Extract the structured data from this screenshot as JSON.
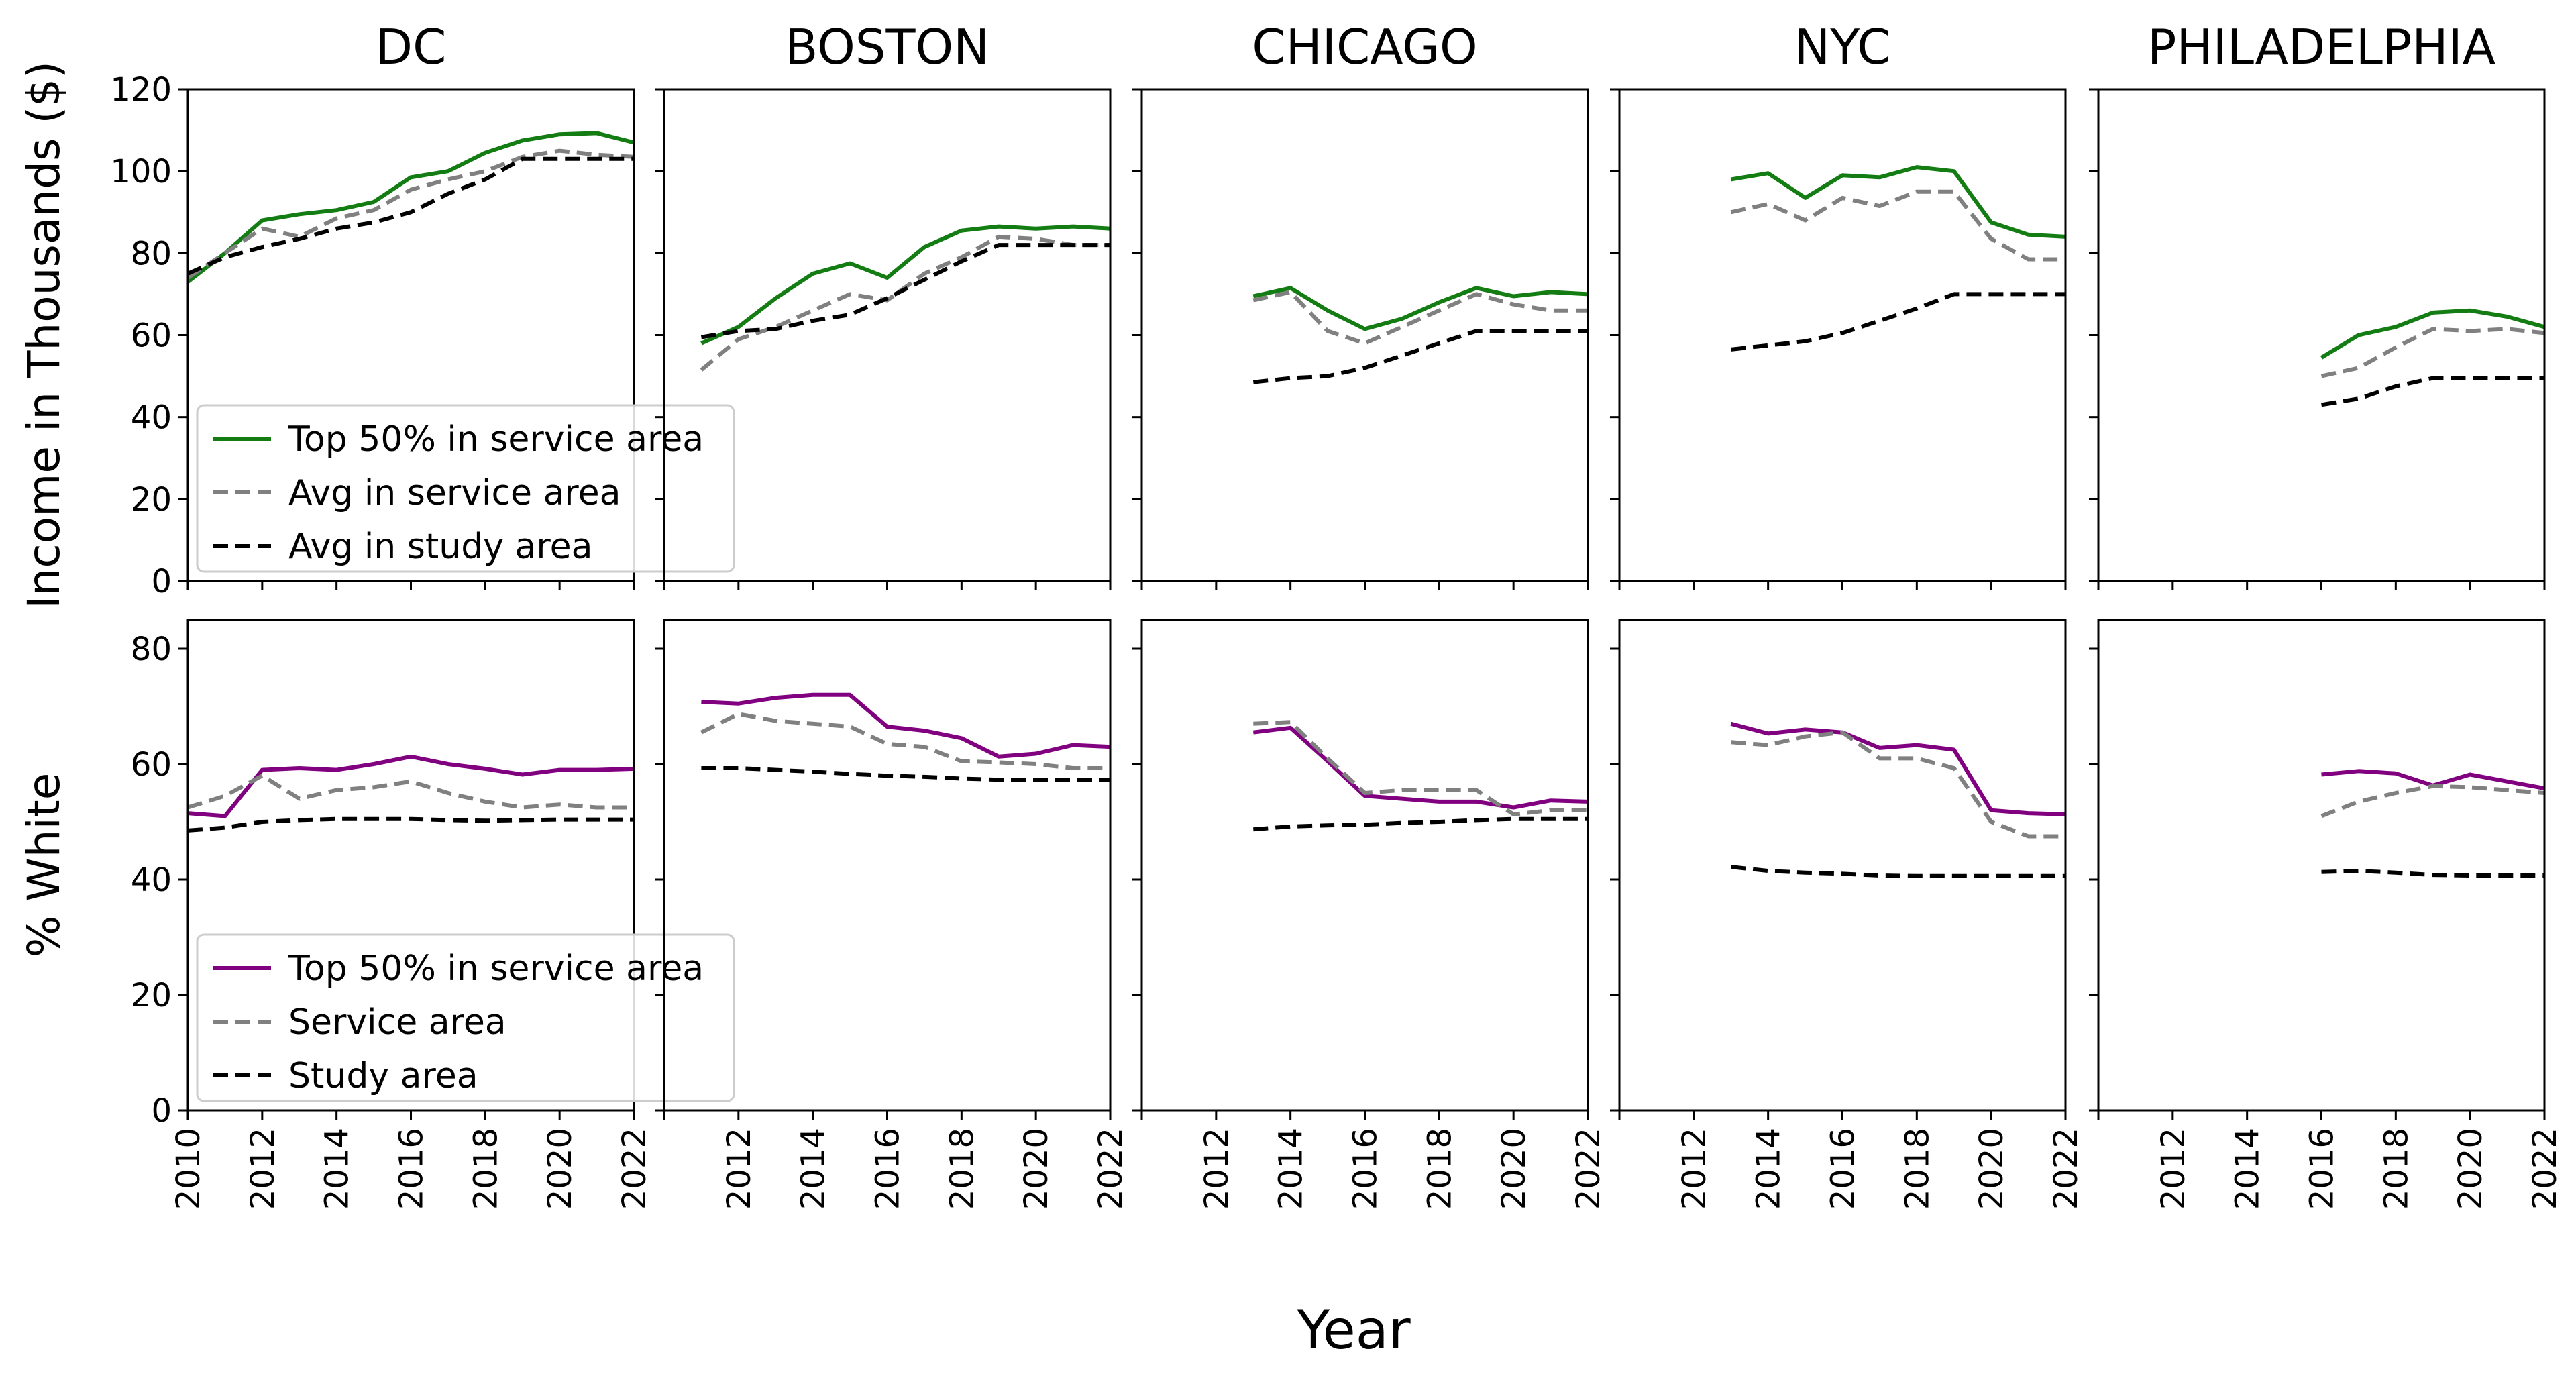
{
  "figure": {
    "xlabel": "Year",
    "colors": {
      "income_top": "#137d13",
      "white_top": "#800080",
      "service": "#808080",
      "study": "#000000"
    }
  },
  "chart_data": [
    {
      "type": "line",
      "row": "income",
      "title": "DC",
      "ylabel": "Income in Thousands ($)",
      "xlim": [
        2010,
        2022
      ],
      "ylim": [
        0,
        120
      ],
      "yticks": [
        0,
        20,
        40,
        60,
        80,
        100,
        120
      ],
      "xticks": [
        2010,
        2012,
        2014,
        2016,
        2018,
        2020,
        2022
      ],
      "legend": "lower-left",
      "series": [
        {
          "name": "Top 50% in service area",
          "style": "solid",
          "color_key": "income_top",
          "x": [
            2010,
            2011,
            2012,
            2013,
            2014,
            2015,
            2016,
            2017,
            2018,
            2019,
            2020,
            2021,
            2022
          ],
          "y": [
            73,
            80,
            88,
            89.5,
            90.5,
            92.5,
            98.5,
            100,
            104.5,
            107.5,
            109,
            109.3,
            107
          ]
        },
        {
          "name": "Avg in service area",
          "style": "dashed",
          "color_key": "service",
          "x": [
            2010,
            2011,
            2012,
            2013,
            2014,
            2015,
            2016,
            2017,
            2018,
            2019,
            2020,
            2021,
            2022
          ],
          "y": [
            74,
            80,
            86,
            84,
            88.5,
            90.5,
            95.5,
            98,
            100,
            103.5,
            105,
            104,
            103.5
          ]
        },
        {
          "name": "Avg in study area",
          "style": "dashed",
          "color_key": "study",
          "x": [
            2010,
            2011,
            2012,
            2013,
            2014,
            2015,
            2016,
            2017,
            2018,
            2019,
            2020,
            2021,
            2022
          ],
          "y": [
            75,
            79,
            81.5,
            83.5,
            86,
            87.5,
            90,
            94.5,
            98,
            103,
            103,
            103,
            103
          ]
        }
      ]
    },
    {
      "type": "line",
      "row": "income",
      "title": "BOSTON",
      "xlim": [
        2010,
        2022
      ],
      "ylim": [
        0,
        120
      ],
      "xticks": [
        2012,
        2014,
        2016,
        2018,
        2020,
        2022
      ],
      "series": [
        {
          "style": "solid",
          "color_key": "income_top",
          "x": [
            2011,
            2012,
            2013,
            2014,
            2015,
            2016,
            2017,
            2018,
            2019,
            2020,
            2021,
            2022
          ],
          "y": [
            58,
            62,
            69,
            75,
            77.5,
            74,
            81.5,
            85.5,
            86.5,
            86,
            86.5,
            86
          ]
        },
        {
          "style": "dashed",
          "color_key": "service",
          "x": [
            2011,
            2012,
            2013,
            2014,
            2015,
            2016,
            2017,
            2018,
            2019,
            2020,
            2021,
            2022
          ],
          "y": [
            51.5,
            59,
            62,
            66,
            70,
            68.5,
            75,
            79,
            84,
            83.5,
            82,
            82
          ]
        },
        {
          "style": "dashed",
          "color_key": "study",
          "x": [
            2011,
            2012,
            2013,
            2014,
            2015,
            2016,
            2017,
            2018,
            2019,
            2020,
            2021,
            2022
          ],
          "y": [
            59.5,
            61,
            61.5,
            63.5,
            65,
            69,
            73.5,
            78,
            82,
            82,
            82,
            82
          ]
        }
      ]
    },
    {
      "type": "line",
      "row": "income",
      "title": "CHICAGO",
      "xlim": [
        2010,
        2022
      ],
      "ylim": [
        0,
        120
      ],
      "xticks": [
        2012,
        2014,
        2016,
        2018,
        2020,
        2022
      ],
      "series": [
        {
          "style": "solid",
          "color_key": "income_top",
          "x": [
            2013,
            2014,
            2015,
            2016,
            2017,
            2018,
            2019,
            2020,
            2021,
            2022
          ],
          "y": [
            69.5,
            71.5,
            66,
            61.5,
            64,
            68,
            71.5,
            69.5,
            70.5,
            70
          ]
        },
        {
          "style": "dashed",
          "color_key": "service",
          "x": [
            2013,
            2014,
            2015,
            2016,
            2017,
            2018,
            2019,
            2020,
            2021,
            2022
          ],
          "y": [
            68.5,
            70.5,
            61,
            58,
            62,
            66,
            70,
            67.5,
            66,
            66
          ]
        },
        {
          "style": "dashed",
          "color_key": "study",
          "x": [
            2013,
            2014,
            2015,
            2016,
            2017,
            2018,
            2019,
            2020,
            2021,
            2022
          ],
          "y": [
            48.5,
            49.5,
            50,
            52,
            55,
            58,
            61,
            61,
            61,
            61
          ]
        }
      ]
    },
    {
      "type": "line",
      "row": "income",
      "title": "NYC",
      "xlim": [
        2010,
        2022
      ],
      "ylim": [
        0,
        120
      ],
      "xticks": [
        2012,
        2014,
        2016,
        2018,
        2020,
        2022
      ],
      "series": [
        {
          "style": "solid",
          "color_key": "income_top",
          "x": [
            2013,
            2014,
            2015,
            2016,
            2017,
            2018,
            2019,
            2020,
            2021,
            2022
          ],
          "y": [
            98,
            99.5,
            93.5,
            99,
            98.5,
            101,
            100,
            87.5,
            84.5,
            84
          ]
        },
        {
          "style": "dashed",
          "color_key": "service",
          "x": [
            2013,
            2014,
            2015,
            2016,
            2017,
            2018,
            2019,
            2020,
            2021,
            2022
          ],
          "y": [
            90,
            92,
            88,
            93.5,
            91.5,
            95,
            95,
            83.5,
            78.5,
            78.5
          ]
        },
        {
          "style": "dashed",
          "color_key": "study",
          "x": [
            2013,
            2014,
            2015,
            2016,
            2017,
            2018,
            2019,
            2020,
            2021,
            2022
          ],
          "y": [
            56.5,
            57.5,
            58.5,
            60.5,
            63.5,
            66.5,
            70,
            70,
            70,
            70
          ]
        }
      ]
    },
    {
      "type": "line",
      "row": "income",
      "title": "PHILADELPHIA",
      "xlim": [
        2010,
        2022
      ],
      "ylim": [
        0,
        120
      ],
      "xticks": [
        2012,
        2014,
        2016,
        2018,
        2020,
        2022
      ],
      "series": [
        {
          "style": "solid",
          "color_key": "income_top",
          "x": [
            2016,
            2017,
            2018,
            2019,
            2020,
            2021,
            2022
          ],
          "y": [
            54.5,
            60,
            62,
            65.5,
            66,
            64.5,
            62
          ]
        },
        {
          "style": "dashed",
          "color_key": "service",
          "x": [
            2016,
            2017,
            2018,
            2019,
            2020,
            2021,
            2022
          ],
          "y": [
            50,
            52,
            57,
            61.5,
            61,
            61.5,
            60.5
          ]
        },
        {
          "style": "dashed",
          "color_key": "study",
          "x": [
            2016,
            2017,
            2018,
            2019,
            2020,
            2021,
            2022
          ],
          "y": [
            43,
            44.5,
            47.5,
            49.5,
            49.5,
            49.5,
            49.5
          ]
        }
      ]
    },
    {
      "type": "line",
      "row": "white",
      "ylabel": "% White",
      "xlim": [
        2010,
        2022
      ],
      "ylim": [
        0,
        85
      ],
      "yticks": [
        0,
        20,
        40,
        60,
        80
      ],
      "xticks": [
        2010,
        2012,
        2014,
        2016,
        2018,
        2020,
        2022
      ],
      "legend": "lower-left",
      "series": [
        {
          "name": "Top 50% in service area",
          "style": "solid",
          "color_key": "white_top",
          "x": [
            2010,
            2011,
            2012,
            2013,
            2014,
            2015,
            2016,
            2017,
            2018,
            2019,
            2020,
            2021,
            2022
          ],
          "y": [
            51.5,
            51,
            59,
            59.3,
            59,
            60,
            61.3,
            60,
            59.2,
            58.2,
            59,
            59,
            59.2
          ]
        },
        {
          "name": "Service area",
          "style": "dashed",
          "color_key": "service",
          "x": [
            2010,
            2011,
            2012,
            2013,
            2014,
            2015,
            2016,
            2017,
            2018,
            2019,
            2020,
            2021,
            2022
          ],
          "y": [
            52.5,
            54.5,
            58,
            54,
            55.5,
            56,
            57,
            55,
            53.5,
            52.5,
            53,
            52.5,
            52.5
          ]
        },
        {
          "name": "Study area",
          "style": "dashed",
          "color_key": "study",
          "x": [
            2010,
            2011,
            2012,
            2013,
            2014,
            2015,
            2016,
            2017,
            2018,
            2019,
            2020,
            2021,
            2022
          ],
          "y": [
            48.5,
            49,
            50,
            50.3,
            50.5,
            50.5,
            50.5,
            50.3,
            50.2,
            50.3,
            50.4,
            50.4,
            50.4
          ]
        }
      ]
    },
    {
      "type": "line",
      "row": "white",
      "xlim": [
        2010,
        2022
      ],
      "ylim": [
        0,
        85
      ],
      "xticks": [
        2012,
        2014,
        2016,
        2018,
        2020,
        2022
      ],
      "series": [
        {
          "style": "solid",
          "color_key": "white_top",
          "x": [
            2011,
            2012,
            2013,
            2014,
            2015,
            2016,
            2017,
            2018,
            2019,
            2020,
            2021,
            2022
          ],
          "y": [
            70.8,
            70.5,
            71.5,
            72,
            72,
            66.5,
            65.8,
            64.5,
            61.3,
            61.8,
            63.3,
            63
          ]
        },
        {
          "style": "dashed",
          "color_key": "service",
          "x": [
            2011,
            2012,
            2013,
            2014,
            2015,
            2016,
            2017,
            2018,
            2019,
            2020,
            2021,
            2022
          ],
          "y": [
            65.5,
            68.7,
            67.5,
            67,
            66.5,
            63.5,
            63,
            60.5,
            60.3,
            60,
            59.3,
            59.3
          ]
        },
        {
          "style": "dashed",
          "color_key": "study",
          "x": [
            2011,
            2012,
            2013,
            2014,
            2015,
            2016,
            2017,
            2018,
            2019,
            2020,
            2021,
            2022
          ],
          "y": [
            59.3,
            59.3,
            59,
            58.7,
            58.3,
            58,
            57.8,
            57.5,
            57.3,
            57.3,
            57.3,
            57.3
          ]
        }
      ]
    },
    {
      "type": "line",
      "row": "white",
      "xlim": [
        2010,
        2022
      ],
      "ylim": [
        0,
        85
      ],
      "xticks": [
        2012,
        2014,
        2016,
        2018,
        2020,
        2022
      ],
      "series": [
        {
          "style": "solid",
          "color_key": "white_top",
          "x": [
            2013,
            2014,
            2015,
            2016,
            2017,
            2018,
            2019,
            2020,
            2021,
            2022
          ],
          "y": [
            65.5,
            66.3,
            60.5,
            54.5,
            54,
            53.5,
            53.5,
            52.5,
            53.7,
            53.5
          ]
        },
        {
          "style": "dashed",
          "color_key": "service",
          "x": [
            2013,
            2014,
            2015,
            2016,
            2017,
            2018,
            2019,
            2020,
            2021,
            2022
          ],
          "y": [
            67,
            67.3,
            61,
            55,
            55.5,
            55.5,
            55.5,
            51.3,
            52,
            52
          ]
        },
        {
          "style": "dashed",
          "color_key": "study",
          "x": [
            2013,
            2014,
            2015,
            2016,
            2017,
            2018,
            2019,
            2020,
            2021,
            2022
          ],
          "y": [
            48.7,
            49.2,
            49.4,
            49.5,
            49.8,
            50,
            50.3,
            50.5,
            50.5,
            50.5
          ]
        }
      ]
    },
    {
      "type": "line",
      "row": "white",
      "xlim": [
        2010,
        2022
      ],
      "ylim": [
        0,
        85
      ],
      "xticks": [
        2012,
        2014,
        2016,
        2018,
        2020,
        2022
      ],
      "series": [
        {
          "style": "solid",
          "color_key": "white_top",
          "x": [
            2013,
            2014,
            2015,
            2016,
            2017,
            2018,
            2019,
            2020,
            2021,
            2022
          ],
          "y": [
            67,
            65.3,
            66,
            65.5,
            62.8,
            63.3,
            62.5,
            52,
            51.5,
            51.3
          ]
        },
        {
          "style": "dashed",
          "color_key": "service",
          "x": [
            2013,
            2014,
            2015,
            2016,
            2017,
            2018,
            2019,
            2020,
            2021,
            2022
          ],
          "y": [
            63.8,
            63.3,
            64.8,
            65.5,
            61,
            61,
            59.3,
            50,
            47.5,
            47.5
          ]
        },
        {
          "style": "dashed",
          "color_key": "study",
          "x": [
            2013,
            2014,
            2015,
            2016,
            2017,
            2018,
            2019,
            2020,
            2021,
            2022
          ],
          "y": [
            42.2,
            41.5,
            41.2,
            41,
            40.7,
            40.6,
            40.6,
            40.6,
            40.6,
            40.6
          ]
        }
      ]
    },
    {
      "type": "line",
      "row": "white",
      "xlim": [
        2010,
        2022
      ],
      "ylim": [
        0,
        85
      ],
      "xticks": [
        2012,
        2014,
        2016,
        2018,
        2020,
        2022
      ],
      "series": [
        {
          "style": "solid",
          "color_key": "white_top",
          "x": [
            2016,
            2017,
            2018,
            2019,
            2020,
            2021,
            2022
          ],
          "y": [
            58.2,
            58.8,
            58.4,
            56.3,
            58.2,
            57,
            55.8
          ]
        },
        {
          "style": "dashed",
          "color_key": "service",
          "x": [
            2016,
            2017,
            2018,
            2019,
            2020,
            2021,
            2022
          ],
          "y": [
            51,
            53.5,
            55,
            56.2,
            56,
            55.5,
            55
          ]
        },
        {
          "style": "dashed",
          "color_key": "study",
          "x": [
            2016,
            2017,
            2018,
            2019,
            2020,
            2021,
            2022
          ],
          "y": [
            41.3,
            41.5,
            41.2,
            40.8,
            40.7,
            40.7,
            40.7
          ]
        }
      ]
    }
  ]
}
